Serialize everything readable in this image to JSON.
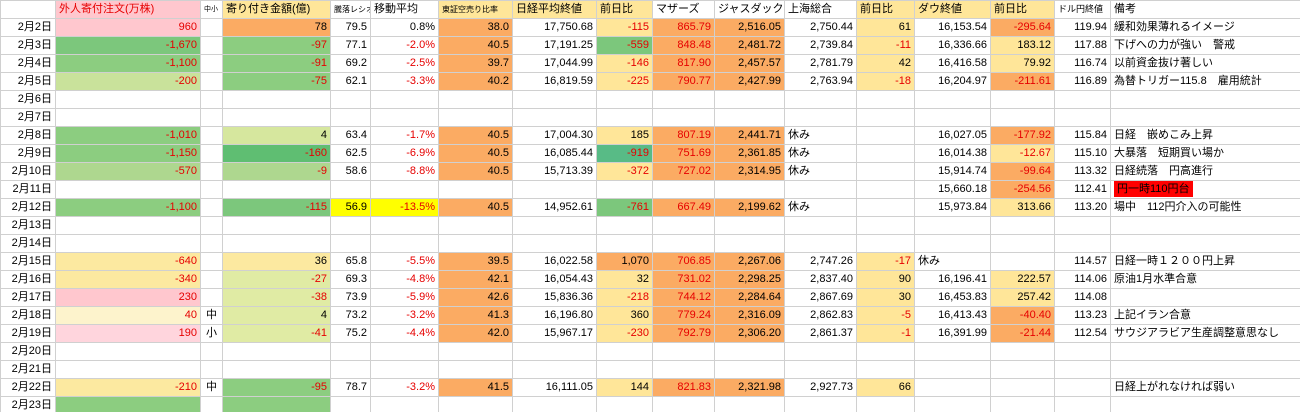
{
  "palette": {
    "pk": "#ffc7ce",
    "pk2": "#ffd5dd",
    "cr": "#fdf3cc",
    "yl": "#ffe699",
    "yb": "#ffff00",
    "py": "#fce9a0",
    "or": "#fbab63",
    "yg": "#e0eba4",
    "yg2": "#d6e79e",
    "g4": "#c9e29b",
    "g3": "#aed78f",
    "g2": "#8ccd80",
    "g2b": "#7cc77c",
    "g1": "#5fbe72",
    "g1b": "#58bb86",
    "rd": "#ff0000",
    "neg": "#e60000",
    "grid": "#d0d0d0"
  },
  "columns": [
    {
      "key": "date",
      "label": "",
      "width": 55,
      "align": "right"
    },
    {
      "key": "foreign",
      "label": "外人寄付注文(万株)",
      "width": 145,
      "align": "right",
      "hBg": "pk",
      "hFg": "neg"
    },
    {
      "key": "size",
      "label": "中小",
      "width": 22,
      "align": "center",
      "hSize": 7
    },
    {
      "key": "opening",
      "label": "寄り付き金額(億)",
      "width": 108,
      "align": "right",
      "hBg": "yl"
    },
    {
      "key": "ratio",
      "label": "騰落レシオ",
      "width": 40,
      "align": "right",
      "hSize": 8
    },
    {
      "key": "ma",
      "label": "移動平均",
      "width": 68,
      "align": "right"
    },
    {
      "key": "short",
      "label": "東証空売り比率",
      "width": 74,
      "align": "right",
      "hBg": "yl",
      "hSize": 8
    },
    {
      "key": "nikkei",
      "label": "日経平均終値",
      "width": 84,
      "align": "right",
      "hBg": "yl"
    },
    {
      "key": "nk_chg",
      "label": "前日比",
      "width": 56,
      "align": "right",
      "hBg": "yl"
    },
    {
      "key": "mothers",
      "label": "マザーズ",
      "width": 62,
      "align": "right"
    },
    {
      "key": "jasdaq",
      "label": "ジャスダック",
      "width": 70,
      "align": "right"
    },
    {
      "key": "shanghai",
      "label": "上海総合",
      "width": 72,
      "align": "right"
    },
    {
      "key": "sh_chg",
      "label": "前日比",
      "width": 58,
      "align": "right",
      "hBg": "yl"
    },
    {
      "key": "dow",
      "label": "ダウ終値",
      "width": 76,
      "align": "right",
      "hBg": "yl"
    },
    {
      "key": "dow_chg",
      "label": "前日比",
      "width": 64,
      "align": "right",
      "hBg": "yl"
    },
    {
      "key": "usdjpy",
      "label": "ドル円終値",
      "width": 56,
      "align": "right",
      "hSize": 9
    },
    {
      "key": "remarks",
      "label": "備考",
      "width": 190,
      "align": "left"
    }
  ],
  "rows": [
    {
      "date": "2月2日",
      "cells": {
        "foreign": {
          "v": "960",
          "bg": "pk",
          "fg": "neg"
        },
        "opening": {
          "v": "78",
          "bg": "or"
        },
        "ratio": {
          "v": "79.5"
        },
        "ma": {
          "v": "0.8%"
        },
        "short": {
          "v": "38.0",
          "bg": "or"
        },
        "nikkei": {
          "v": "17,750.68"
        },
        "nk_chg": {
          "v": "-115",
          "bg": "yl",
          "fg": "neg"
        },
        "mothers": {
          "v": "865.79",
          "bg": "or",
          "fg": "neg"
        },
        "jasdaq": {
          "v": "2,516.05",
          "bg": "or"
        },
        "shanghai": {
          "v": "2,750.44"
        },
        "sh_chg": {
          "v": "61",
          "bg": "yl"
        },
        "dow": {
          "v": "16,153.54"
        },
        "dow_chg": {
          "v": "-295.64",
          "bg": "or",
          "fg": "neg"
        },
        "usdjpy": {
          "v": "119.94"
        },
        "remarks": {
          "v": "緩和効果薄れるイメージ"
        }
      }
    },
    {
      "date": "2月3日",
      "cells": {
        "foreign": {
          "v": "-1,670",
          "bg": "g2b",
          "fg": "neg"
        },
        "opening": {
          "v": "-97",
          "bg": "g2",
          "fg": "neg"
        },
        "ratio": {
          "v": "77.1"
        },
        "ma": {
          "v": "-2.0%",
          "fg": "neg"
        },
        "short": {
          "v": "40.5",
          "bg": "or"
        },
        "nikkei": {
          "v": "17,191.25"
        },
        "nk_chg": {
          "v": "-559",
          "bg": "g2b",
          "fg": "neg"
        },
        "mothers": {
          "v": "848.48",
          "bg": "or",
          "fg": "neg"
        },
        "jasdaq": {
          "v": "2,481.72",
          "bg": "or"
        },
        "shanghai": {
          "v": "2,739.84"
        },
        "sh_chg": {
          "v": "-11",
          "bg": "yl",
          "fg": "neg"
        },
        "dow": {
          "v": "16,336.66"
        },
        "dow_chg": {
          "v": "183.12",
          "bg": "yl"
        },
        "usdjpy": {
          "v": "117.88"
        },
        "remarks": {
          "v": "下げへの力が強い　警戒"
        }
      }
    },
    {
      "date": "2月4日",
      "cells": {
        "foreign": {
          "v": "-1,100",
          "bg": "g2",
          "fg": "neg"
        },
        "opening": {
          "v": "-91",
          "bg": "g2",
          "fg": "neg"
        },
        "ratio": {
          "v": "69.2"
        },
        "ma": {
          "v": "-2.5%",
          "fg": "neg"
        },
        "short": {
          "v": "39.7",
          "bg": "or"
        },
        "nikkei": {
          "v": "17,044.99"
        },
        "nk_chg": {
          "v": "-146",
          "bg": "yl",
          "fg": "neg"
        },
        "mothers": {
          "v": "817.90",
          "bg": "or",
          "fg": "neg"
        },
        "jasdaq": {
          "v": "2,457.57",
          "bg": "or"
        },
        "shanghai": {
          "v": "2,781.79"
        },
        "sh_chg": {
          "v": "42",
          "bg": "yl"
        },
        "dow": {
          "v": "16,416.58"
        },
        "dow_chg": {
          "v": "79.92",
          "bg": "yl"
        },
        "usdjpy": {
          "v": "116.74"
        },
        "remarks": {
          "v": "以前資金抜け著しい"
        }
      }
    },
    {
      "date": "2月5日",
      "cells": {
        "foreign": {
          "v": "-200",
          "bg": "g4",
          "fg": "neg"
        },
        "opening": {
          "v": "-75",
          "bg": "g2",
          "fg": "neg"
        },
        "ratio": {
          "v": "62.1"
        },
        "ma": {
          "v": "-3.3%",
          "fg": "neg"
        },
        "short": {
          "v": "40.2",
          "bg": "or"
        },
        "nikkei": {
          "v": "16,819.59"
        },
        "nk_chg": {
          "v": "-225",
          "bg": "yl",
          "fg": "neg"
        },
        "mothers": {
          "v": "790.77",
          "bg": "or",
          "fg": "neg"
        },
        "jasdaq": {
          "v": "2,427.99",
          "bg": "or"
        },
        "shanghai": {
          "v": "2,763.94"
        },
        "sh_chg": {
          "v": "-18",
          "bg": "yl",
          "fg": "neg"
        },
        "dow": {
          "v": "16,204.97"
        },
        "dow_chg": {
          "v": "-211.61",
          "bg": "or",
          "fg": "neg"
        },
        "usdjpy": {
          "v": "116.89"
        },
        "remarks": {
          "v": "為替トリガー115.8　雇用統計"
        }
      }
    },
    {
      "date": "2月6日",
      "cells": {}
    },
    {
      "date": "2月7日",
      "cells": {}
    },
    {
      "date": "2月8日",
      "cells": {
        "foreign": {
          "v": "-1,010",
          "bg": "g2",
          "fg": "neg"
        },
        "opening": {
          "v": "4",
          "bg": "yg2"
        },
        "ratio": {
          "v": "63.4"
        },
        "ma": {
          "v": "-1.7%",
          "fg": "neg"
        },
        "short": {
          "v": "40.5",
          "bg": "or"
        },
        "nikkei": {
          "v": "17,004.30"
        },
        "nk_chg": {
          "v": "185",
          "bg": "yl"
        },
        "mothers": {
          "v": "807.19",
          "bg": "or",
          "fg": "neg"
        },
        "jasdaq": {
          "v": "2,441.71",
          "bg": "or"
        },
        "shanghai": {
          "v": "休み",
          "al": "left"
        },
        "dow": {
          "v": "16,027.05"
        },
        "dow_chg": {
          "v": "-177.92",
          "bg": "or",
          "fg": "neg"
        },
        "usdjpy": {
          "v": "115.84"
        },
        "remarks": {
          "v": "日経　嵌めこみ上昇"
        }
      }
    },
    {
      "date": "2月9日",
      "cells": {
        "foreign": {
          "v": "-1,150",
          "bg": "g2",
          "fg": "neg"
        },
        "opening": {
          "v": "-160",
          "bg": "g1",
          "fg": "neg"
        },
        "ratio": {
          "v": "62.5"
        },
        "ma": {
          "v": "-6.9%",
          "fg": "neg"
        },
        "short": {
          "v": "40.5",
          "bg": "or"
        },
        "nikkei": {
          "v": "16,085.44"
        },
        "nk_chg": {
          "v": "-919",
          "bg": "g1b",
          "fg": "neg"
        },
        "mothers": {
          "v": "751.69",
          "bg": "or",
          "fg": "neg"
        },
        "jasdaq": {
          "v": "2,361.85",
          "bg": "or"
        },
        "shanghai": {
          "v": "休み",
          "al": "left"
        },
        "dow": {
          "v": "16,014.38"
        },
        "dow_chg": {
          "v": "-12.67",
          "bg": "yl",
          "fg": "neg"
        },
        "usdjpy": {
          "v": "115.10"
        },
        "remarks": {
          "v": "大暴落　短期買い場か"
        }
      }
    },
    {
      "date": "2月10日",
      "cells": {
        "foreign": {
          "v": "-570",
          "bg": "g3",
          "fg": "neg"
        },
        "opening": {
          "v": "-9",
          "bg": "g3",
          "fg": "neg"
        },
        "ratio": {
          "v": "58.6"
        },
        "ma": {
          "v": "-8.8%",
          "fg": "neg"
        },
        "short": {
          "v": "40.5",
          "bg": "or"
        },
        "nikkei": {
          "v": "15,713.39"
        },
        "nk_chg": {
          "v": "-372",
          "bg": "yl",
          "fg": "neg"
        },
        "mothers": {
          "v": "727.02",
          "bg": "or",
          "fg": "neg"
        },
        "jasdaq": {
          "v": "2,314.95",
          "bg": "or"
        },
        "shanghai": {
          "v": "休み",
          "al": "left"
        },
        "dow": {
          "v": "15,914.74"
        },
        "dow_chg": {
          "v": "-99.64",
          "bg": "or",
          "fg": "neg"
        },
        "usdjpy": {
          "v": "113.32"
        },
        "remarks": {
          "v": "日経続落　円高進行"
        }
      }
    },
    {
      "date": "2月11日",
      "cells": {
        "dow": {
          "v": "15,660.18"
        },
        "dow_chg": {
          "v": "-254.56",
          "bg": "or",
          "fg": "neg"
        },
        "usdjpy": {
          "v": "112.41"
        },
        "remarks": {
          "v": "円一時110円台",
          "box": "rd"
        }
      }
    },
    {
      "date": "2月12日",
      "cells": {
        "foreign": {
          "v": "-1,100",
          "bg": "g2",
          "fg": "neg"
        },
        "opening": {
          "v": "-115",
          "bg": "g2b",
          "fg": "neg"
        },
        "ratio": {
          "v": "56.9",
          "bg": "yb"
        },
        "ma": {
          "v": "-13.5%",
          "bg": "yb",
          "fg": "neg"
        },
        "short": {
          "v": "40.5",
          "bg": "or"
        },
        "nikkei": {
          "v": "14,952.61"
        },
        "nk_chg": {
          "v": "-761",
          "bg": "g2b",
          "fg": "neg"
        },
        "mothers": {
          "v": "667.49",
          "bg": "or",
          "fg": "neg"
        },
        "jasdaq": {
          "v": "2,199.62",
          "bg": "or"
        },
        "shanghai": {
          "v": "休み",
          "al": "left"
        },
        "dow": {
          "v": "15,973.84"
        },
        "dow_chg": {
          "v": "313.66",
          "bg": "yl"
        },
        "usdjpy": {
          "v": "113.20"
        },
        "remarks": {
          "v": "場中　112円介入の可能性"
        }
      }
    },
    {
      "date": "2月13日",
      "cells": {}
    },
    {
      "date": "2月14日",
      "cells": {}
    },
    {
      "date": "2月15日",
      "cells": {
        "foreign": {
          "v": "-640",
          "bg": "py",
          "fg": "neg"
        },
        "opening": {
          "v": "36",
          "bg": "py"
        },
        "ratio": {
          "v": "65.8"
        },
        "ma": {
          "v": "-5.5%",
          "fg": "neg"
        },
        "short": {
          "v": "39.5",
          "bg": "or"
        },
        "nikkei": {
          "v": "16,022.58"
        },
        "nk_chg": {
          "v": "1,070",
          "bg": "or"
        },
        "mothers": {
          "v": "706.85",
          "bg": "or",
          "fg": "neg"
        },
        "jasdaq": {
          "v": "2,267.06",
          "bg": "or"
        },
        "shanghai": {
          "v": "2,747.26"
        },
        "sh_chg": {
          "v": "-17",
          "bg": "yl",
          "fg": "neg"
        },
        "dow": {
          "v": "休み",
          "al": "left"
        },
        "usdjpy": {
          "v": "114.57"
        },
        "remarks": {
          "v": "日経一時１２００円上昇"
        }
      }
    },
    {
      "date": "2月16日",
      "cells": {
        "foreign": {
          "v": "-340",
          "bg": "py",
          "fg": "neg"
        },
        "opening": {
          "v": "-27",
          "bg": "yg",
          "fg": "neg"
        },
        "ratio": {
          "v": "69.3"
        },
        "ma": {
          "v": "-4.8%",
          "fg": "neg"
        },
        "short": {
          "v": "42.1",
          "bg": "or"
        },
        "nikkei": {
          "v": "16,054.43"
        },
        "nk_chg": {
          "v": "32",
          "bg": "yl"
        },
        "mothers": {
          "v": "731.02",
          "bg": "or",
          "fg": "neg"
        },
        "jasdaq": {
          "v": "2,298.25",
          "bg": "or"
        },
        "shanghai": {
          "v": "2,837.40"
        },
        "sh_chg": {
          "v": "90",
          "bg": "yl"
        },
        "dow": {
          "v": "16,196.41"
        },
        "dow_chg": {
          "v": "222.57",
          "bg": "yl"
        },
        "usdjpy": {
          "v": "114.06"
        },
        "remarks": {
          "v": "原油1月水準合意"
        }
      }
    },
    {
      "date": "2月17日",
      "cells": {
        "foreign": {
          "v": "230",
          "bg": "pk",
          "fg": "neg"
        },
        "opening": {
          "v": "-38",
          "bg": "yg",
          "fg": "neg"
        },
        "ratio": {
          "v": "73.9"
        },
        "ma": {
          "v": "-5.9%",
          "fg": "neg"
        },
        "short": {
          "v": "42.6",
          "bg": "or"
        },
        "nikkei": {
          "v": "15,836.36"
        },
        "nk_chg": {
          "v": "-218",
          "bg": "yl",
          "fg": "neg"
        },
        "mothers": {
          "v": "744.12",
          "bg": "or",
          "fg": "neg"
        },
        "jasdaq": {
          "v": "2,284.64",
          "bg": "or"
        },
        "shanghai": {
          "v": "2,867.69"
        },
        "sh_chg": {
          "v": "30",
          "bg": "yl"
        },
        "dow": {
          "v": "16,453.83"
        },
        "dow_chg": {
          "v": "257.42",
          "bg": "yl"
        },
        "usdjpy": {
          "v": "114.08"
        }
      }
    },
    {
      "date": "2月18日",
      "cells": {
        "foreign": {
          "v": "40",
          "bg": "cr",
          "fg": "neg"
        },
        "size": {
          "v": "中"
        },
        "opening": {
          "v": "4",
          "bg": "yg"
        },
        "ratio": {
          "v": "73.2"
        },
        "ma": {
          "v": "-3.2%",
          "fg": "neg"
        },
        "short": {
          "v": "41.3",
          "bg": "or"
        },
        "nikkei": {
          "v": "16,196.80"
        },
        "nk_chg": {
          "v": "360",
          "bg": "yl"
        },
        "mothers": {
          "v": "779.24",
          "bg": "or",
          "fg": "neg"
        },
        "jasdaq": {
          "v": "2,316.09",
          "bg": "or"
        },
        "shanghai": {
          "v": "2,862.83"
        },
        "sh_chg": {
          "v": "-5",
          "bg": "yl",
          "fg": "neg"
        },
        "dow": {
          "v": "16,413.43"
        },
        "dow_chg": {
          "v": "-40.40",
          "bg": "or",
          "fg": "neg"
        },
        "usdjpy": {
          "v": "113.23"
        },
        "remarks": {
          "v": "上記イラン合意"
        }
      }
    },
    {
      "date": "2月19日",
      "cells": {
        "foreign": {
          "v": "190",
          "bg": "pk2",
          "fg": "neg"
        },
        "size": {
          "v": "小"
        },
        "opening": {
          "v": "-41",
          "bg": "yg",
          "fg": "neg"
        },
        "ratio": {
          "v": "75.2"
        },
        "ma": {
          "v": "-4.4%",
          "fg": "neg"
        },
        "short": {
          "v": "42.0",
          "bg": "or"
        },
        "nikkei": {
          "v": "15,967.17"
        },
        "nk_chg": {
          "v": "-230",
          "bg": "yl",
          "fg": "neg"
        },
        "mothers": {
          "v": "792.79",
          "bg": "or",
          "fg": "neg"
        },
        "jasdaq": {
          "v": "2,306.20",
          "bg": "or"
        },
        "shanghai": {
          "v": "2,861.37"
        },
        "sh_chg": {
          "v": "-1",
          "bg": "yl",
          "fg": "neg"
        },
        "dow": {
          "v": "16,391.99"
        },
        "dow_chg": {
          "v": "-21.44",
          "bg": "or",
          "fg": "neg"
        },
        "usdjpy": {
          "v": "112.54"
        },
        "remarks": {
          "v": "サウジアラビア生産調整意思なし"
        }
      }
    },
    {
      "date": "2月20日",
      "cells": {}
    },
    {
      "date": "2月21日",
      "cells": {}
    },
    {
      "date": "2月22日",
      "cells": {
        "foreign": {
          "v": "-210",
          "bg": "py",
          "fg": "neg"
        },
        "size": {
          "v": "中"
        },
        "opening": {
          "v": "-95",
          "bg": "g2",
          "fg": "neg"
        },
        "ratio": {
          "v": "78.7"
        },
        "ma": {
          "v": "-3.2%",
          "fg": "neg"
        },
        "short": {
          "v": "41.5",
          "bg": "or"
        },
        "nikkei": {
          "v": "16,111.05"
        },
        "nk_chg": {
          "v": "144",
          "bg": "yl"
        },
        "mothers": {
          "v": "821.83",
          "bg": "or",
          "fg": "neg"
        },
        "jasdaq": {
          "v": "2,321.98",
          "bg": "or"
        },
        "shanghai": {
          "v": "2,927.73"
        },
        "sh_chg": {
          "v": "66",
          "bg": "yl"
        },
        "remarks": {
          "v": "日経上がれなければ弱い"
        }
      }
    },
    {
      "date": "2月23日",
      "cells": {
        "foreign": {
          "v": "",
          "bg": "g2"
        },
        "opening": {
          "v": "",
          "bg": "g2"
        }
      }
    }
  ]
}
